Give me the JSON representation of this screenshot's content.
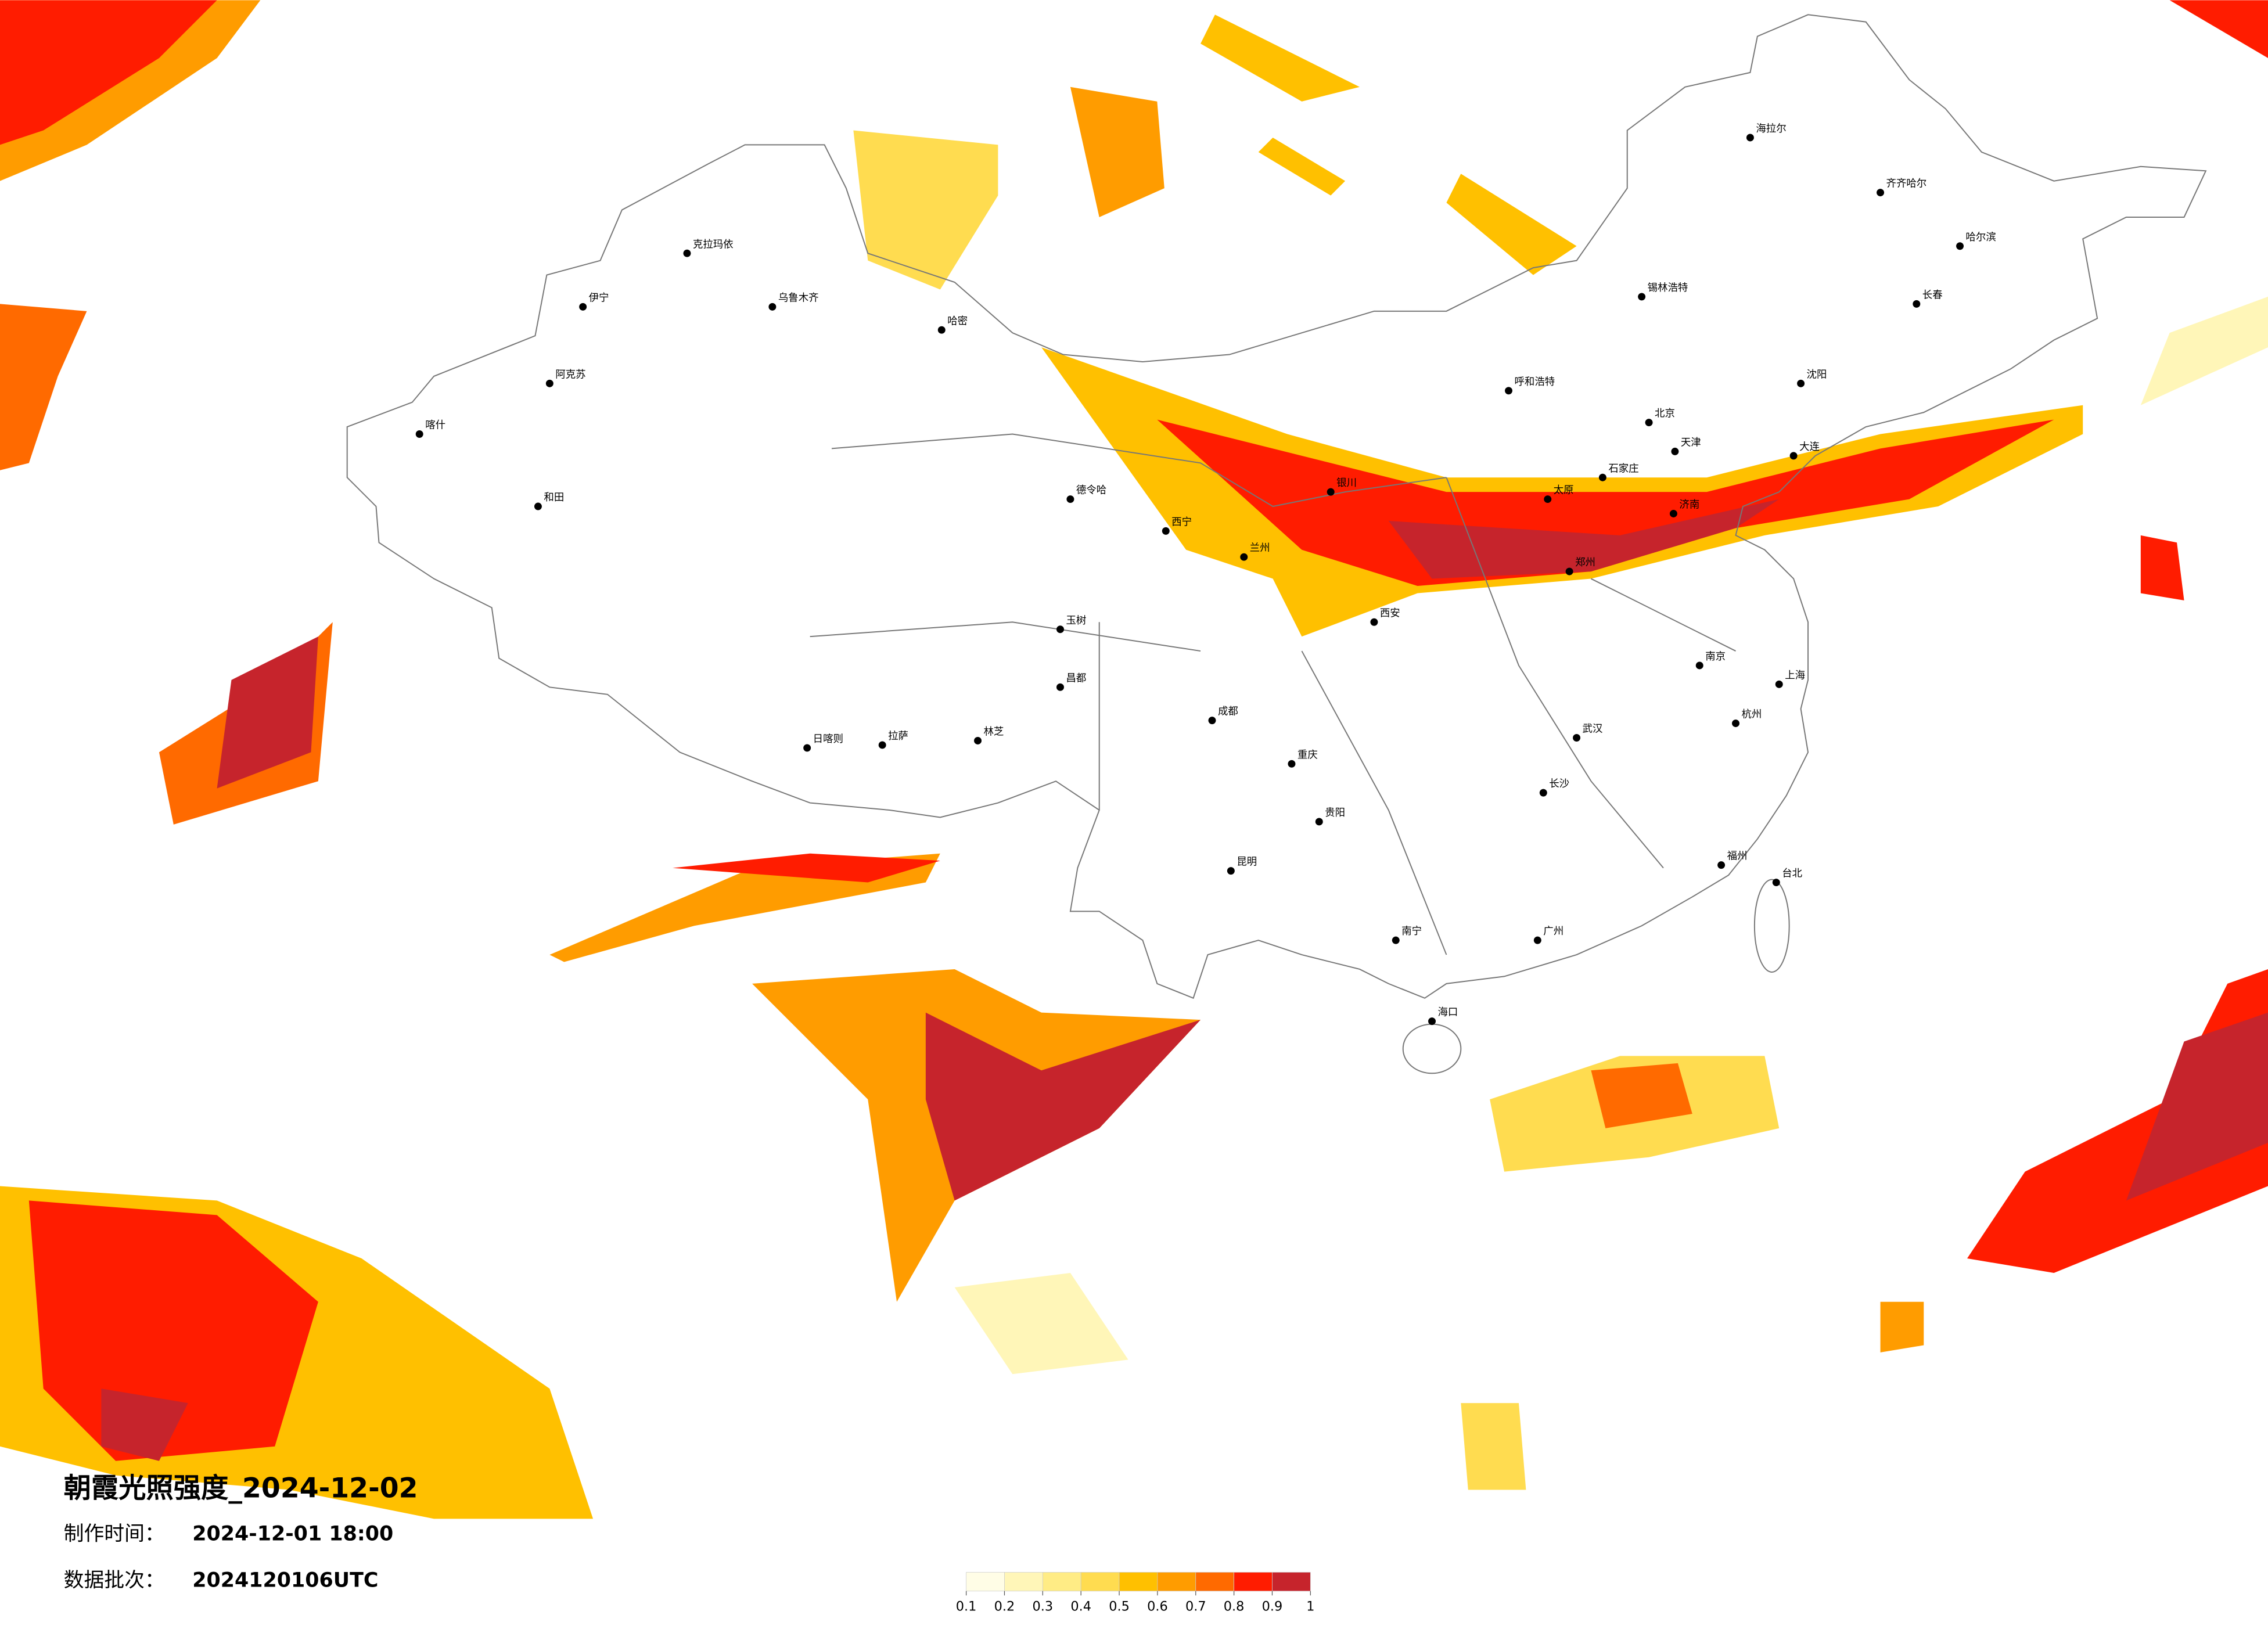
{
  "title": "朝霞光照强度_2024-12-02",
  "made_label": "制作时间：",
  "made_time": "2024-12-01 18:00",
  "batch_label": "数据批次：",
  "batch": "2024120106UTC",
  "legend": {
    "ticks": [
      0.1,
      0.2,
      0.3,
      0.4,
      0.5,
      0.6,
      0.7,
      0.8,
      0.9,
      1
    ],
    "colors": [
      "#fffde6",
      "#fff6b8",
      "#ffec85",
      "#ffdc50",
      "#ffc000",
      "#ff9c00",
      "#ff6a00",
      "#ff1c00",
      "#c6242c"
    ]
  },
  "cities": [
    "克拉玛依",
    "乌鲁木齐",
    "哈密",
    "伊宁",
    "阿克苏",
    "喀什",
    "和田",
    "德令哈",
    "西宁",
    "拉萨",
    "日喀则",
    "林芝",
    "昌都",
    "玉树",
    "成都",
    "重庆",
    "昆明",
    "贵阳",
    "南宁",
    "广州",
    "海口",
    "台北",
    "福州",
    "上海",
    "杭州",
    "南京",
    "武汉",
    "长沙",
    "郑州",
    "西安",
    "兰州",
    "银川",
    "呼和浩特",
    "北京",
    "天津",
    "石家庄",
    "太原",
    "济南",
    "沈阳",
    "长春",
    "哈尔滨",
    "齐齐哈尔",
    "锡林浩特",
    "海拉尔",
    "大连"
  ]
}
